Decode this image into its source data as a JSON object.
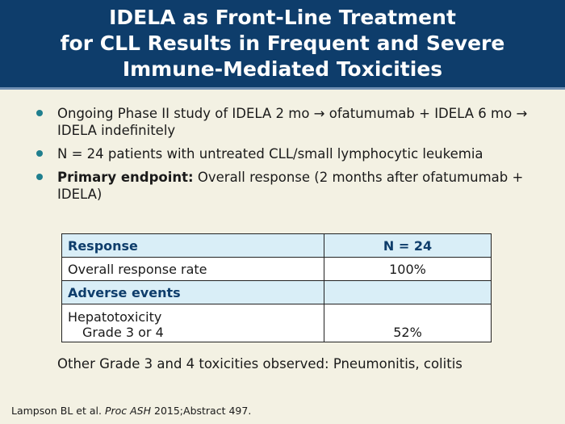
{
  "title": {
    "line1": "IDELA as Front-Line Treatment",
    "line2": "for CLL Results in Frequent and Severe",
    "line3": "Immune-Mediated Toxicities"
  },
  "bullets": [
    {
      "bold": "",
      "text": "Ongoing Phase II study of IDELA 2 mo → ofatumumab + IDELA 6 mo → IDELA indefinitely"
    },
    {
      "bold": "",
      "text": "N = 24 patients with untreated CLL/small lymphocytic leukemia"
    },
    {
      "bold": "Primary endpoint:",
      "text": " Overall response (2 months after ofatumumab + IDELA)"
    }
  ],
  "table": {
    "header": [
      "Response",
      "N = 24"
    ],
    "row1": [
      "Overall response rate",
      "100%"
    ],
    "section": [
      "Adverse events",
      ""
    ],
    "row3": {
      "label": "Hepatotoxicity",
      "sublabel": "Grade 3 or 4",
      "value": "52%"
    }
  },
  "note": "Other Grade 3 and 4 toxicities observed: Pneumonitis, colitis",
  "citation": {
    "author": "Lampson BL et al. ",
    "journal": "Proc ASH",
    "rest": " 2015;Abstract 497."
  },
  "colors": {
    "header_bg": "#0e3d6b",
    "table_header_bg": "#d9eef7",
    "bullet": "#1f7f8e",
    "page_bg": "#f3f1e3"
  }
}
